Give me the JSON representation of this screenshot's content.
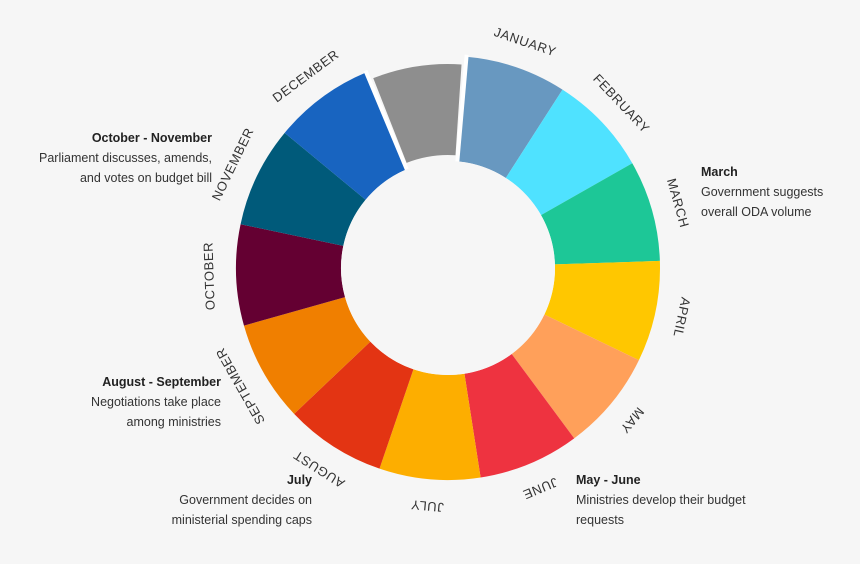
{
  "wheel": {
    "months": [
      {
        "label": "JANUARY",
        "color": "#6898c0"
      },
      {
        "label": "FEBRUARY",
        "color": "#4fe2ff"
      },
      {
        "label": "MARCH",
        "color": "#1dc797"
      },
      {
        "label": "APRIL",
        "color": "#ffc700"
      },
      {
        "label": "MAY",
        "color": "#ffa05a"
      },
      {
        "label": "JUNE",
        "color": "#ee3340"
      },
      {
        "label": "JULY",
        "color": "#fdae00"
      },
      {
        "label": "AUGUST",
        "color": "#e33413"
      },
      {
        "label": "SEPTEMBER",
        "color": "#f07f00"
      },
      {
        "label": "OCTOBER",
        "color": "#640032"
      },
      {
        "label": "NOVEMBER",
        "color": "#005a7a"
      },
      {
        "label": "DECEMBER",
        "color": "#1864c0"
      }
    ],
    "gap_segment_color": "#8e8e8e"
  },
  "notes": {
    "oct_nov": {
      "title": "October - November",
      "lines": [
        "Parliament discusses, amends,",
        "and votes on budget bill"
      ]
    },
    "march": {
      "title": "March",
      "lines": [
        "Government suggests",
        "overall ODA volume"
      ]
    },
    "aug_sep": {
      "title": "August - September",
      "lines": [
        "Negotiations take place",
        "among ministries"
      ]
    },
    "july": {
      "title": "July",
      "lines": [
        "Government decides on",
        "ministerial spending caps"
      ]
    },
    "may_june": {
      "title": "May - June",
      "lines": [
        "Ministries develop their budget",
        "requests"
      ]
    }
  }
}
